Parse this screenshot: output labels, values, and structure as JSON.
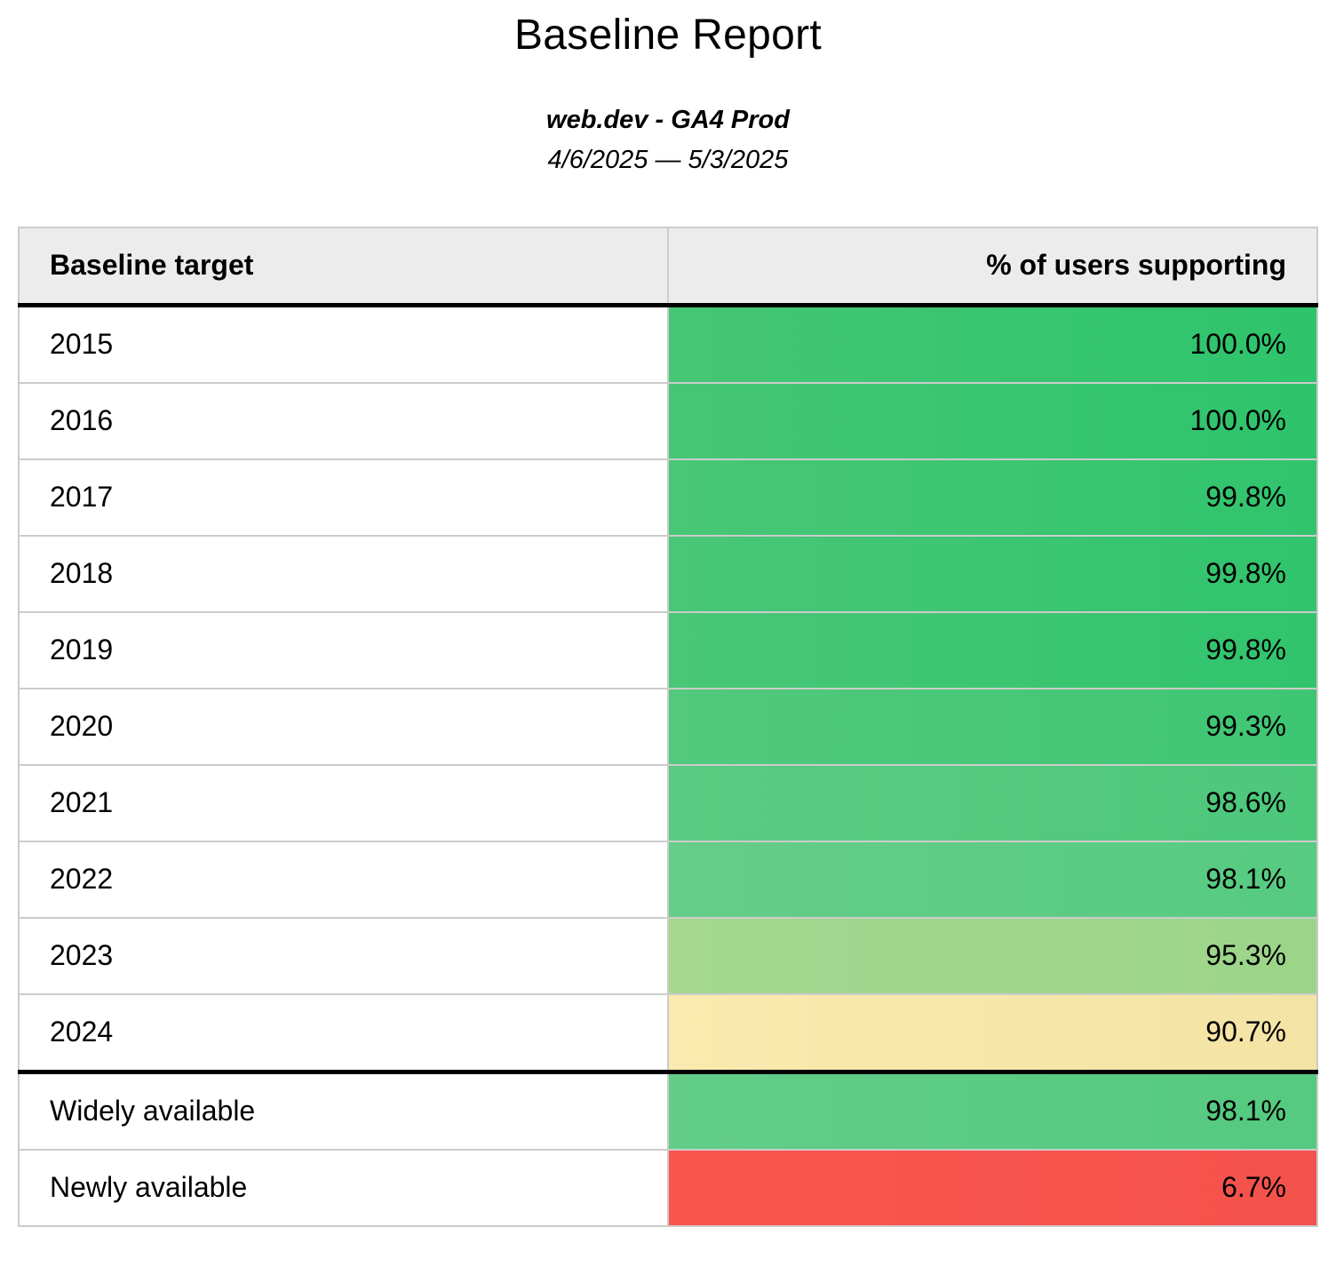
{
  "report": {
    "title": "Baseline Report",
    "subtitle": "web.dev - GA4 Prod",
    "date_range": "4/6/2025 — 5/3/2025"
  },
  "colors": {
    "header_background": "#ececec",
    "cell_border": "#cccccc",
    "heavy_divider": "#000000",
    "max_green": "#2ec46c",
    "mid_yellow": "#f3e3a4",
    "min_red": "#f4524c"
  },
  "table": {
    "columns": [
      "Baseline target",
      "% of users supporting"
    ],
    "rows": [
      {
        "label": "2015",
        "value": "100.0%",
        "color_left": "#45c675",
        "color_right": "#2ec46c",
        "divider_above": false
      },
      {
        "label": "2016",
        "value": "100.0%",
        "color_left": "#45c675",
        "color_right": "#2ec46c",
        "divider_above": false
      },
      {
        "label": "2017",
        "value": "99.8%",
        "color_left": "#48c777",
        "color_right": "#31c46d",
        "divider_above": false
      },
      {
        "label": "2018",
        "value": "99.8%",
        "color_left": "#48c777",
        "color_right": "#31c46d",
        "divider_above": false
      },
      {
        "label": "2019",
        "value": "99.8%",
        "color_left": "#48c777",
        "color_right": "#31c46d",
        "divider_above": false
      },
      {
        "label": "2020",
        "value": "99.3%",
        "color_left": "#52c97d",
        "color_right": "#3ec673",
        "divider_above": false
      },
      {
        "label": "2021",
        "value": "98.6%",
        "color_left": "#5ccb83",
        "color_right": "#4cc87b",
        "divider_above": false
      },
      {
        "label": "2022",
        "value": "98.1%",
        "color_left": "#65cd89",
        "color_right": "#57cb81",
        "divider_above": false
      },
      {
        "label": "2023",
        "value": "95.3%",
        "color_left": "#a5d78f",
        "color_right": "#9cd58a",
        "divider_above": false
      },
      {
        "label": "2024",
        "value": "90.7%",
        "color_left": "#fbeaaf",
        "color_right": "#f3e3a4",
        "divider_above": false
      },
      {
        "label": "Widely available",
        "value": "98.1%",
        "color_left": "#63cd88",
        "color_right": "#55ca80",
        "divider_above": true
      },
      {
        "label": "Newly available",
        "value": "6.7%",
        "color_left": "#f9564f",
        "color_right": "#f4524c",
        "divider_above": false
      }
    ]
  },
  "chart_data": {
    "type": "table",
    "title": "Baseline Report",
    "subtitle": "web.dev - GA4 Prod",
    "date_range": "4/6/2025 — 5/3/2025",
    "categories": [
      "2015",
      "2016",
      "2017",
      "2018",
      "2019",
      "2020",
      "2021",
      "2022",
      "2023",
      "2024",
      "Widely available",
      "Newly available"
    ],
    "values": [
      100.0,
      100.0,
      99.8,
      99.8,
      99.8,
      99.3,
      98.6,
      98.1,
      95.3,
      90.7,
      98.1,
      6.7
    ],
    "value_unit": "%",
    "xlabel": "Baseline target",
    "ylabel": "% of users supporting",
    "color_scale": "red-yellow-green heatmap on value cells"
  }
}
